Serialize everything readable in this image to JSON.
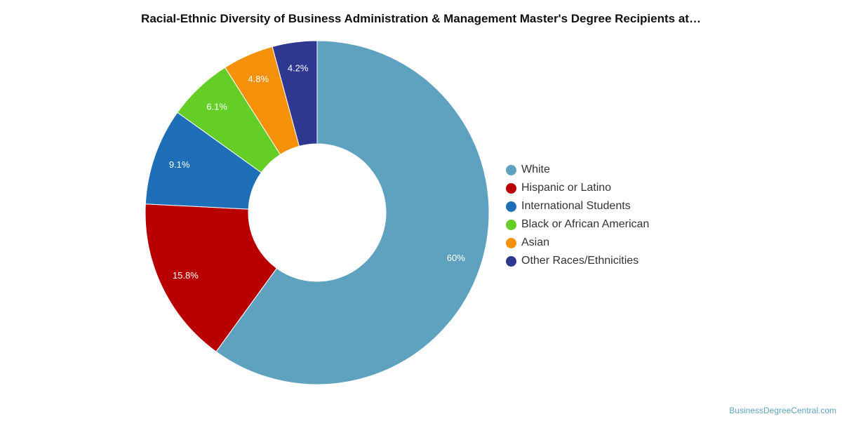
{
  "chart_data": {
    "type": "pie",
    "title": "Racial-Ethnic Diversity of Business Administration & Management Master's Degree Recipients at…",
    "donut": true,
    "legend_position": "right",
    "slices": [
      {
        "label": "White",
        "value": 60,
        "display": "60%",
        "color": "#5fa2bf"
      },
      {
        "label": "Hispanic or Latino",
        "value": 15.8,
        "display": "15.8%",
        "color": "#b80000"
      },
      {
        "label": "International Students",
        "value": 9.1,
        "display": "9.1%",
        "color": "#1f6fb8"
      },
      {
        "label": "Black or African American",
        "value": 6.1,
        "display": "6.1%",
        "color": "#64cd26"
      },
      {
        "label": "Asian",
        "value": 4.8,
        "display": "4.8%",
        "color": "#f59109"
      },
      {
        "label": "Other Races/Ethnicities",
        "value": 4.2,
        "display": "4.2%",
        "color": "#2f3891"
      }
    ]
  },
  "footer": {
    "credit": "BusinessDegreeCentral.com"
  }
}
